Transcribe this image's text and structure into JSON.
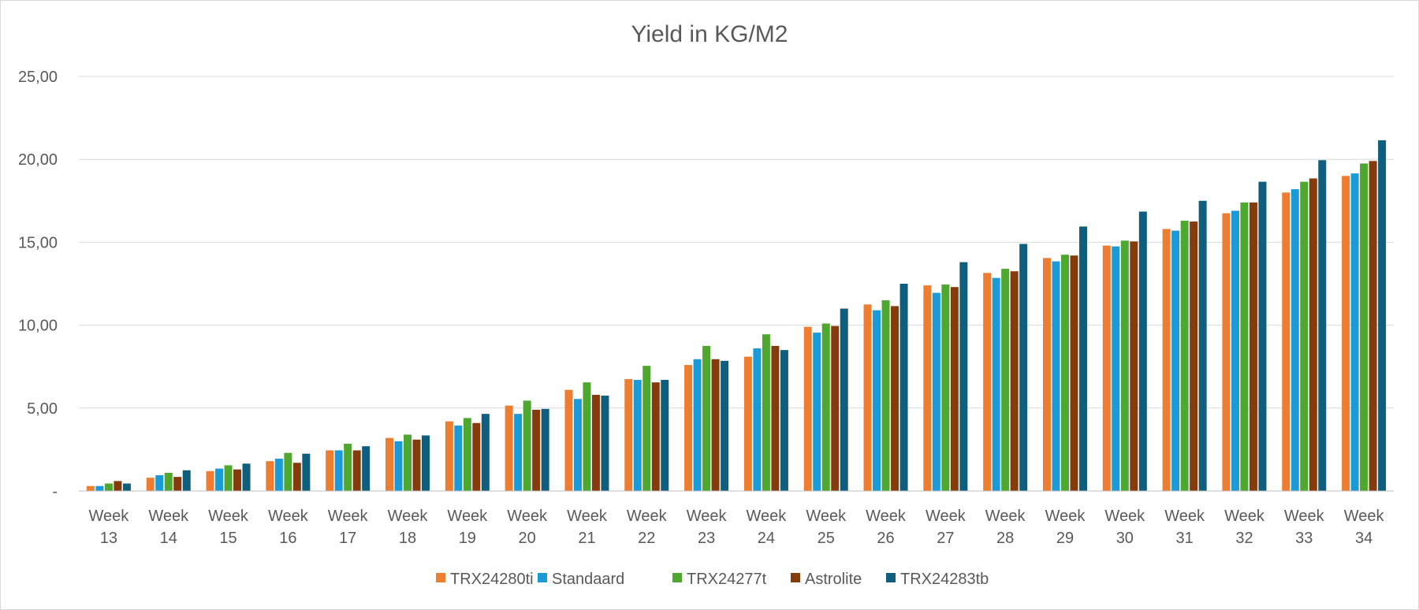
{
  "chart_data": {
    "type": "bar",
    "title": "Yield in KG/M2",
    "xlabel": "",
    "ylabel": "",
    "ylim": [
      0,
      25
    ],
    "yticks": [
      "-",
      "5,00",
      "10,00",
      "15,00",
      "20,00",
      "25,00"
    ],
    "grid": true,
    "legend_position": "bottom",
    "categories": [
      "Week 13",
      "Week 14",
      "Week 15",
      "Week 16",
      "Week 17",
      "Week 18",
      "Week 19",
      "Week 20",
      "Week 21",
      "Week 22",
      "Week 23",
      "Week 24",
      "Week 25",
      "Week 26",
      "Week 27",
      "Week 28",
      "Week 29",
      "Week 30",
      "Week 31",
      "Week 32",
      "Week 33",
      "Week 34"
    ],
    "series": [
      {
        "name": "TRX24280ti",
        "color": "#ED7D31",
        "values": [
          0.3,
          0.8,
          1.2,
          1.8,
          2.45,
          3.2,
          4.2,
          5.15,
          6.1,
          6.75,
          7.6,
          8.1,
          9.9,
          11.25,
          12.4,
          13.15,
          14.05,
          14.8,
          15.8,
          16.75,
          18.0,
          19.0
        ]
      },
      {
        "name": "Standaard",
        "color": "#1A9BD7",
        "values": [
          0.3,
          0.95,
          1.35,
          1.95,
          2.45,
          3.0,
          3.95,
          4.65,
          5.55,
          6.7,
          7.95,
          8.6,
          9.55,
          10.9,
          11.95,
          12.85,
          13.85,
          14.75,
          15.7,
          16.9,
          18.2,
          19.15
        ]
      },
      {
        "name": "TRX24277t",
        "color": "#4EA72E",
        "values": [
          0.45,
          1.1,
          1.55,
          2.3,
          2.85,
          3.4,
          4.4,
          5.45,
          6.55,
          7.55,
          8.75,
          9.45,
          10.1,
          11.5,
          12.45,
          13.4,
          14.25,
          15.1,
          16.3,
          17.4,
          18.65,
          19.75
        ]
      },
      {
        "name": "Astrolite",
        "color": "#843C0C",
        "values": [
          0.6,
          0.85,
          1.3,
          1.7,
          2.45,
          3.1,
          4.1,
          4.9,
          5.8,
          6.55,
          7.95,
          8.75,
          9.95,
          11.15,
          12.3,
          13.25,
          14.2,
          15.05,
          16.25,
          17.4,
          18.85,
          19.9
        ]
      },
      {
        "name": "TRX24283tb",
        "color": "#0F5E7E",
        "values": [
          0.45,
          1.25,
          1.65,
          2.25,
          2.7,
          3.35,
          4.65,
          4.95,
          5.75,
          6.7,
          7.85,
          8.5,
          11.0,
          12.5,
          13.8,
          14.9,
          15.95,
          16.85,
          17.5,
          18.65,
          19.95,
          21.15
        ]
      }
    ]
  }
}
